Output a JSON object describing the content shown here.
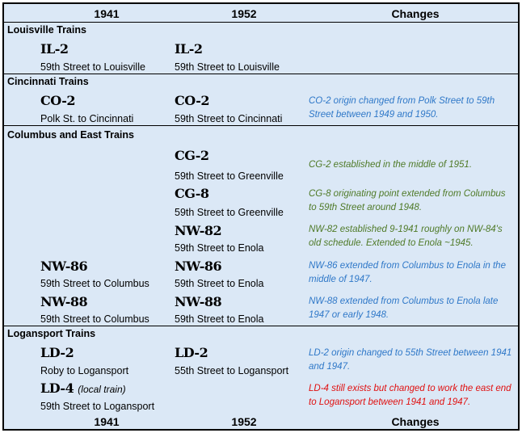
{
  "header": {
    "col1": "1941",
    "col2": "1952",
    "col3": "Changes"
  },
  "footer": {
    "col1": "1941",
    "col2": "1952",
    "col3": "Changes"
  },
  "colors": {
    "blue": "#2f78c8",
    "green": "#4f7a28",
    "red": "#e01010",
    "background": "#dbe8f6"
  },
  "sections": {
    "louisville": {
      "title": "Louisville Trains",
      "il2": {
        "code_1941": "IL-2",
        "route_1941": "59th Street to Louisville",
        "code_1952": "IL-2",
        "route_1952": "59th Street to Louisville"
      }
    },
    "cincinnati": {
      "title": "Cincinnati Trains",
      "co2": {
        "code_1941": "CO-2",
        "route_1941": "Polk St. to Cincinnati",
        "code_1952": "CO-2",
        "route_1952": "59th Street to Cincinnati",
        "change": "CO-2 origin changed from Polk Street to 59th Street between 1949 and 1950."
      }
    },
    "columbus": {
      "title": "Columbus and East Trains",
      "cg2": {
        "code_1952": "CG-2",
        "route_1952": "59th Street to Greenville",
        "change": "CG-2 established in the middle of 1951."
      },
      "cg8": {
        "code_1952": "CG-8",
        "route_1952": "59th Street to Greenville",
        "change": "CG-8 originating point extended from Columbus to 59th Street around 1948."
      },
      "nw82": {
        "code_1952": "NW-82",
        "route_1952": "59th Street to Enola",
        "change": "NW-82 established 9-1941 roughly on NW-84's old schedule.  Extended to Enola ~1945."
      },
      "nw86": {
        "code_1941": "NW-86",
        "route_1941": "59th Street to Columbus",
        "code_1952": "NW-86",
        "route_1952": "59th Street to Enola",
        "change": "NW-86 extended from Columbus to Enola in the middle of 1947."
      },
      "nw88": {
        "code_1941": "NW-88",
        "route_1941": "59th Street to Columbus",
        "code_1952": "NW-88",
        "route_1952": "59th Street to Enola",
        "change": "NW-88 extended from Columbus to Enola late 1947 or early 1948."
      }
    },
    "logansport": {
      "title": "Logansport Trains",
      "ld2": {
        "code_1941": "LD-2",
        "route_1941": "Roby to Logansport",
        "code_1952": "LD-2",
        "route_1952": "55th Street to Logansport",
        "change": "LD-2 origin changed to 55th Street between 1941 and 1947."
      },
      "ld4": {
        "code_1941": "LD-4",
        "note_1941": "(local train)",
        "route_1941": "59th Street to Logansport",
        "change": "LD-4 still exists but changed to work the east end to Logansport between 1941 and 1947."
      }
    }
  }
}
